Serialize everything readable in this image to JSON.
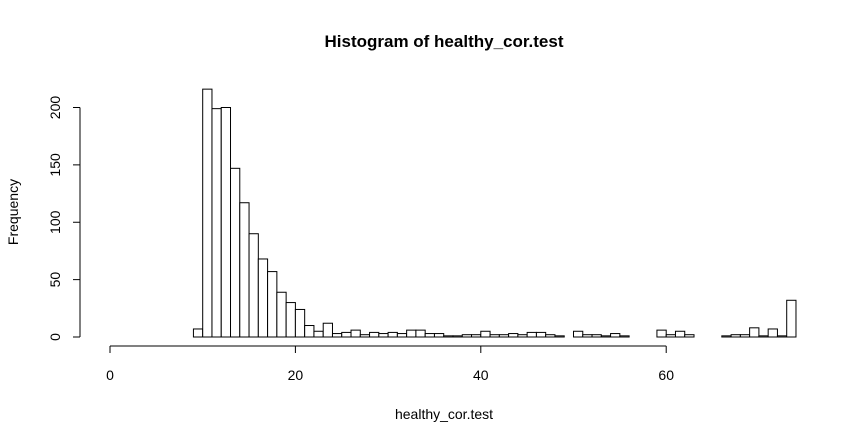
{
  "chart_data": {
    "type": "bar",
    "title": "Histogram of healthy_cor.test",
    "xlabel": "healthy_cor.test",
    "ylabel": "Frequency",
    "bin_width": 1,
    "bin_start": 0,
    "x_ticks": [
      0,
      20,
      40,
      60
    ],
    "x_tick_labels": [
      "0",
      "20",
      "40",
      "60"
    ],
    "y_ticks": [
      0,
      50,
      100,
      150,
      200
    ],
    "y_tick_labels": [
      "0",
      "50",
      "100",
      "150",
      "200"
    ],
    "xlim": [
      0,
      72
    ],
    "ylim": [
      0,
      220
    ],
    "values": [
      0,
      0,
      0,
      0,
      0,
      0,
      0,
      0,
      0,
      7,
      216,
      199,
      200,
      147,
      117,
      90,
      68,
      57,
      39,
      30,
      24,
      10,
      5,
      12,
      3,
      4,
      6,
      2,
      4,
      3,
      4,
      3,
      6,
      6,
      3,
      3,
      1,
      1,
      2,
      2,
      5,
      2,
      2,
      3,
      2,
      4,
      4,
      2,
      1,
      0,
      5,
      2,
      2,
      1,
      3,
      1,
      0,
      0,
      0,
      6,
      2,
      5,
      2,
      0,
      0,
      0,
      1,
      2,
      2,
      8,
      1,
      7,
      1,
      32
    ],
    "colors": {
      "bar_fill": "#ffffff",
      "bar_stroke": "#000000",
      "background": "#ffffff"
    }
  }
}
